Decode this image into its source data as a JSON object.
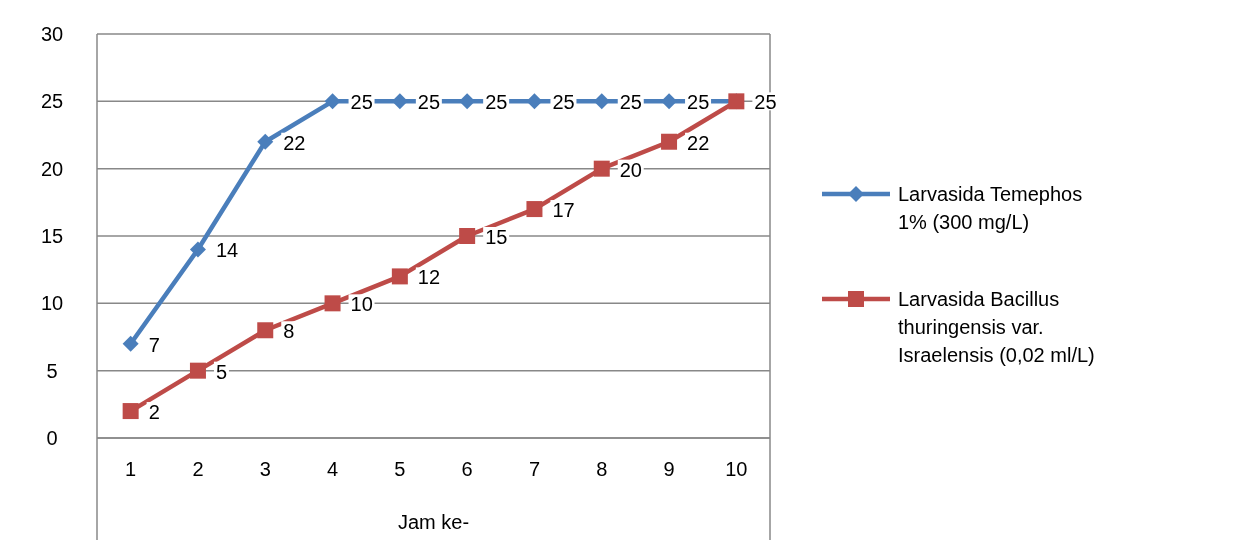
{
  "chart_data": {
    "type": "line",
    "xlabel": "Jam ke-",
    "categories": [
      "1",
      "2",
      "3",
      "4",
      "5",
      "6",
      "7",
      "8",
      "9",
      "10"
    ],
    "series": [
      {
        "name": "Larvasida Temephos 1% (300 mg/L)",
        "color": "#4a7ebb",
        "marker": "diamond",
        "values": [
          7,
          14,
          22,
          25,
          25,
          25,
          25,
          25,
          25,
          25
        ],
        "value_labels": [
          "7",
          "14",
          "22",
          "25",
          "25",
          "25",
          "25",
          "25",
          "25",
          null
        ]
      },
      {
        "name": "Larvasida Bacillus thuringensis var. Israelensis  (0,02 ml/L)",
        "color": "#be4b48",
        "marker": "square",
        "values": [
          2,
          5,
          8,
          10,
          12,
          15,
          17,
          20,
          22,
          25
        ],
        "value_labels": [
          "2",
          "5",
          "8",
          "10",
          "12",
          "15",
          "17",
          "20",
          "22",
          "25"
        ]
      }
    ],
    "ylim": [
      0,
      30
    ],
    "yticks": [
      0,
      5,
      10,
      15,
      20,
      25,
      30
    ],
    "grid": "y",
    "legend": "right"
  }
}
